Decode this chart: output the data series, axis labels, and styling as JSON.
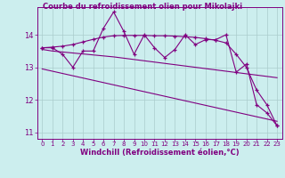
{
  "title": "Courbe du refroidissement olien pour Mikolajki",
  "xlabel": "Windchill (Refroidissement éolien,°C)",
  "line_color": "#800080",
  "bg_color": "#cceeee",
  "grid_color": "#aacccc",
  "ylim": [
    10.8,
    14.85
  ],
  "xlim": [
    -0.5,
    23.5
  ],
  "yticks": [
    11,
    12,
    13,
    14
  ],
  "xticks": [
    0,
    1,
    2,
    3,
    4,
    5,
    6,
    7,
    8,
    9,
    10,
    11,
    12,
    13,
    14,
    15,
    16,
    17,
    18,
    19,
    20,
    21,
    22,
    23
  ],
  "series_jagged": [
    13.6,
    13.6,
    13.4,
    13.0,
    13.5,
    13.5,
    14.2,
    14.7,
    14.1,
    13.4,
    14.0,
    13.6,
    13.3,
    13.55,
    14.0,
    13.7,
    13.85,
    13.85,
    14.0,
    12.85,
    13.1,
    11.85,
    11.6,
    11.2
  ],
  "series_smooth": [
    13.6,
    13.62,
    13.65,
    13.7,
    13.78,
    13.86,
    13.93,
    13.97,
    13.98,
    13.98,
    13.98,
    13.97,
    13.97,
    13.96,
    13.94,
    13.92,
    13.88,
    13.83,
    13.75,
    13.4,
    13.0,
    12.3,
    11.85,
    11.2
  ],
  "series_trend1": [
    13.55,
    13.5,
    13.47,
    13.44,
    13.41,
    13.38,
    13.35,
    13.32,
    13.28,
    13.24,
    13.2,
    13.16,
    13.12,
    13.08,
    13.04,
    13.0,
    12.96,
    12.92,
    12.88,
    12.84,
    12.8,
    12.76,
    12.72,
    12.68
  ],
  "series_trend2": [
    12.95,
    12.88,
    12.81,
    12.74,
    12.67,
    12.6,
    12.53,
    12.46,
    12.39,
    12.32,
    12.25,
    12.18,
    12.11,
    12.04,
    11.97,
    11.9,
    11.83,
    11.76,
    11.69,
    11.62,
    11.55,
    11.48,
    11.41,
    11.34
  ]
}
